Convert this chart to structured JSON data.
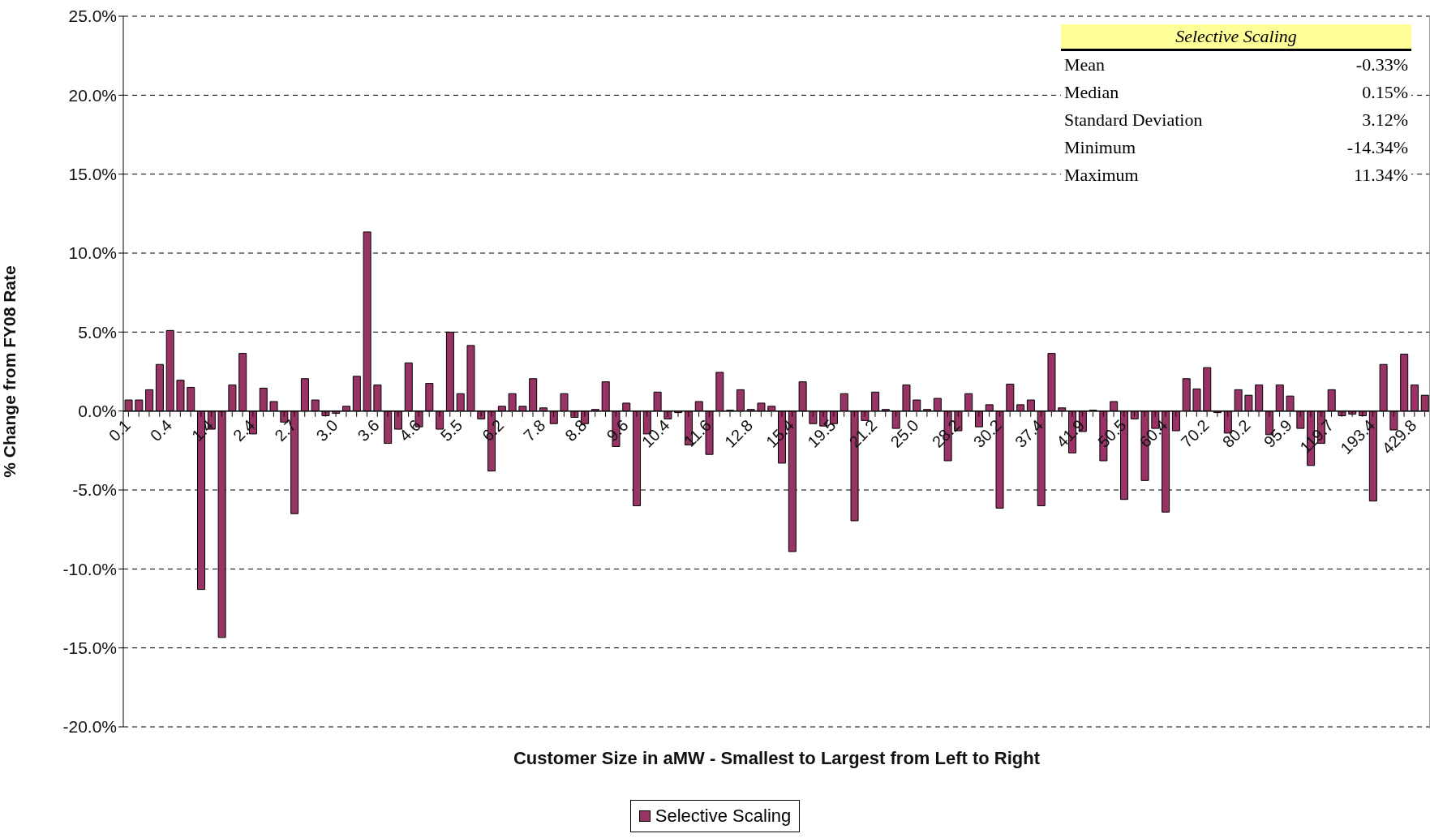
{
  "chart_data": {
    "type": "bar",
    "xlabel": "Customer Size in aMW - Smallest to Largest from Left to Right",
    "ylabel": "% Change from FY08 Rate",
    "categories": [
      "0.1",
      null,
      null,
      null,
      "0.4",
      null,
      null,
      null,
      "1.4",
      null,
      null,
      null,
      "2.4",
      null,
      null,
      null,
      "2.7",
      null,
      null,
      null,
      "3.0",
      null,
      null,
      null,
      "3.6",
      null,
      null,
      null,
      "4.6",
      null,
      null,
      null,
      "5.5",
      null,
      null,
      null,
      "6.2",
      null,
      null,
      null,
      "7.8",
      null,
      null,
      null,
      "8.8",
      null,
      null,
      null,
      "9.6",
      null,
      null,
      null,
      "10.4",
      null,
      null,
      null,
      "11.6",
      null,
      null,
      null,
      "12.8",
      null,
      null,
      null,
      "15.4",
      null,
      null,
      null,
      "19.5",
      null,
      null,
      null,
      "21.2",
      null,
      null,
      null,
      "25.0",
      null,
      null,
      null,
      "28.2",
      null,
      null,
      null,
      "30.2",
      null,
      null,
      null,
      "37.4",
      null,
      null,
      null,
      "41.9",
      null,
      null,
      null,
      "50.5",
      null,
      null,
      null,
      "60.4",
      null,
      null,
      null,
      "70.2",
      null,
      null,
      null,
      "80.2",
      null,
      null,
      null,
      "95.9",
      null,
      null,
      null,
      "119.7",
      null,
      null,
      null,
      "193.4",
      null,
      null,
      null,
      "429.8",
      null
    ],
    "series": [
      {
        "name": "Selective Scaling",
        "color": "#993366",
        "values": [
          0.7,
          0.7,
          1.35,
          2.95,
          5.1,
          1.95,
          1.5,
          -11.3,
          -1.15,
          -14.34,
          1.65,
          3.65,
          -1.45,
          1.45,
          0.6,
          -0.7,
          -6.5,
          2.05,
          0.7,
          -0.3,
          -0.15,
          0.3,
          2.2,
          11.34,
          1.65,
          -2.05,
          -1.15,
          3.05,
          -1.0,
          1.75,
          -1.15,
          5.0,
          1.1,
          4.15,
          -0.5,
          -3.8,
          0.3,
          1.1,
          0.3,
          2.05,
          0.2,
          -0.8,
          1.1,
          -0.4,
          -0.8,
          0.1,
          1.85,
          -2.25,
          0.5,
          -6.0,
          -1.45,
          1.2,
          -0.5,
          -0.1,
          -2.15,
          0.6,
          -2.75,
          2.45,
          0.05,
          1.35,
          0.1,
          0.5,
          0.3,
          -3.3,
          -8.9,
          1.85,
          -0.8,
          -0.95,
          -0.8,
          1.1,
          -6.95,
          -0.6,
          1.2,
          0.1,
          -1.1,
          1.65,
          0.7,
          0.1,
          0.8,
          -3.15,
          -1.25,
          1.1,
          -1.0,
          0.4,
          -6.15,
          1.7,
          0.4,
          0.7,
          -6.0,
          3.65,
          0.2,
          -2.65,
          -1.3,
          0.05,
          -3.15,
          0.6,
          -5.6,
          -0.5,
          -4.4,
          -1.1,
          -6.4,
          -1.25,
          2.05,
          1.4,
          2.75,
          -0.1,
          -1.4,
          1.35,
          1.0,
          1.65,
          -1.5,
          1.65,
          0.95,
          -1.1,
          -3.45,
          -2.05,
          1.35,
          -0.3,
          -0.2,
          -0.3,
          -5.7,
          2.95,
          -1.2,
          3.6,
          1.65,
          1.0
        ]
      }
    ],
    "ylim": [
      -20,
      25
    ],
    "yticks": [
      {
        "value": -20,
        "label": "-20.0%"
      },
      {
        "value": -15,
        "label": "-15.0%"
      },
      {
        "value": -10,
        "label": "-10.0%"
      },
      {
        "value": -5,
        "label": "-5.0%"
      },
      {
        "value": 0,
        "label": "0.0%"
      },
      {
        "value": 5,
        "label": "5.0%"
      },
      {
        "value": 10,
        "label": "10.0%"
      },
      {
        "value": 15,
        "label": "15.0%"
      },
      {
        "value": 20,
        "label": "20.0%"
      },
      {
        "value": 25,
        "label": "25.0%"
      }
    ],
    "grid": "y",
    "legend": "bottom",
    "annotations": [
      "Selective Scaling",
      "Mean",
      "-0.33%",
      "Median",
      "0.15%",
      "Standard Deviation",
      "3.12%",
      "Minimum",
      "-14.34%",
      "Maximum",
      "11.34%"
    ]
  }
}
